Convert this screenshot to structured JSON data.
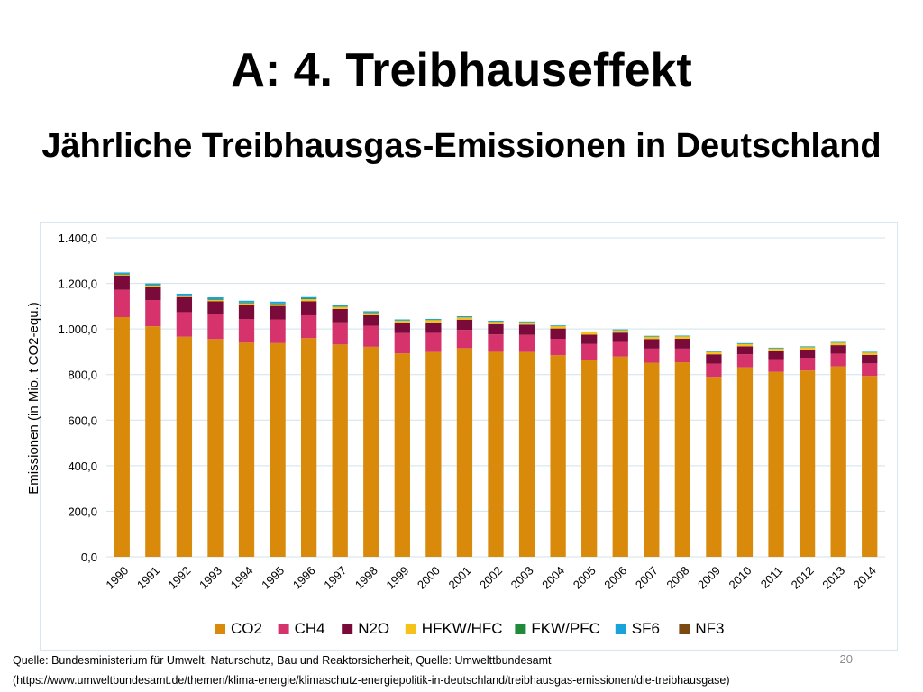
{
  "slide": {
    "title": "A: 4. Treibhauseffekt",
    "page_number": "20"
  },
  "footer": {
    "source_line_1": "Quelle: Bundesministerium für Umwelt, Naturschutz, Bau und Reaktorsicherheit, Quelle: Umwelttbundesamt",
    "source_line_2": "(https://www.umweltbundesamt.de/themen/klima-energie/klimaschutz-energiepolitik-in-deutschland/treibhausgas-emissionen/die-treibhausgase)"
  },
  "chart_data": {
    "type": "bar",
    "stacked": true,
    "title": "Jährliche Treibhausgas-Emissionen in Deutschland",
    "xlabel": "",
    "ylabel": "Emissionen (in Mio. t CO2-equ.)",
    "ylim": [
      0,
      1400
    ],
    "yticks": [
      0,
      200,
      400,
      600,
      800,
      1000,
      1200,
      1400
    ],
    "ytick_labels": [
      "0,0",
      "200,0",
      "400,0",
      "600,0",
      "800,0",
      "1.000,0",
      "1.200,0",
      "1.400,0"
    ],
    "grid": true,
    "legend": "bottom",
    "categories": [
      "1990",
      "1991",
      "1992",
      "1993",
      "1994",
      "1995",
      "1996",
      "1997",
      "1998",
      "1999",
      "2000",
      "2001",
      "2002",
      "2003",
      "2004",
      "2005",
      "2006",
      "2007",
      "2008",
      "2009",
      "2010",
      "2011",
      "2012",
      "2013",
      "2014"
    ],
    "series": [
      {
        "name": "CO2",
        "color": "#d98a0b",
        "values": [
          1052,
          1012,
          966,
          956,
          940,
          938,
          960,
          932,
          922,
          893,
          899,
          916,
          900,
          899,
          885,
          866,
          879,
          852,
          854,
          790,
          832,
          812,
          818,
          836,
          794
        ]
      },
      {
        "name": "CH4",
        "color": "#d6336c",
        "values": [
          120,
          115,
          108,
          108,
          104,
          104,
          100,
          97,
          92,
          89,
          84,
          80,
          76,
          75,
          72,
          68,
          64,
          62,
          60,
          58,
          57,
          56,
          56,
          56,
          55
        ]
      },
      {
        "name": "N2O",
        "color": "#7a0a3a",
        "values": [
          63,
          59,
          66,
          58,
          61,
          59,
          62,
          59,
          46,
          44,
          46,
          45,
          45,
          45,
          45,
          41,
          41,
          42,
          43,
          41,
          35,
          36,
          36,
          37,
          37
        ]
      },
      {
        "name": "HFKW/HFC",
        "color": "#f5c21a",
        "values": [
          4,
          5,
          5,
          6,
          8,
          8,
          9,
          9,
          10,
          10,
          10,
          10,
          10,
          10,
          10,
          10,
          10,
          10,
          10,
          10,
          10,
          10,
          10,
          10,
          10
        ]
      },
      {
        "name": "FKW/PFC",
        "color": "#1f8a3a",
        "values": [
          3,
          3,
          3,
          3,
          3,
          3,
          2,
          2,
          2,
          1,
          1,
          1,
          1,
          1,
          1,
          1,
          1,
          1,
          1,
          1,
          1,
          1,
          1,
          1,
          1
        ]
      },
      {
        "name": "SF6",
        "color": "#1aa3d9",
        "values": [
          6,
          6,
          7,
          8,
          8,
          8,
          7,
          6,
          6,
          5,
          4,
          4,
          4,
          3,
          3,
          3,
          3,
          3,
          3,
          3,
          3,
          3,
          3,
          3,
          3
        ]
      },
      {
        "name": "NF3",
        "color": "#7a4a12",
        "values": [
          0,
          0,
          0,
          0,
          0,
          0,
          0,
          0,
          0,
          0,
          0,
          0,
          0,
          0,
          0,
          0,
          0,
          0,
          0,
          0,
          0,
          0,
          0,
          0,
          0
        ]
      }
    ]
  }
}
